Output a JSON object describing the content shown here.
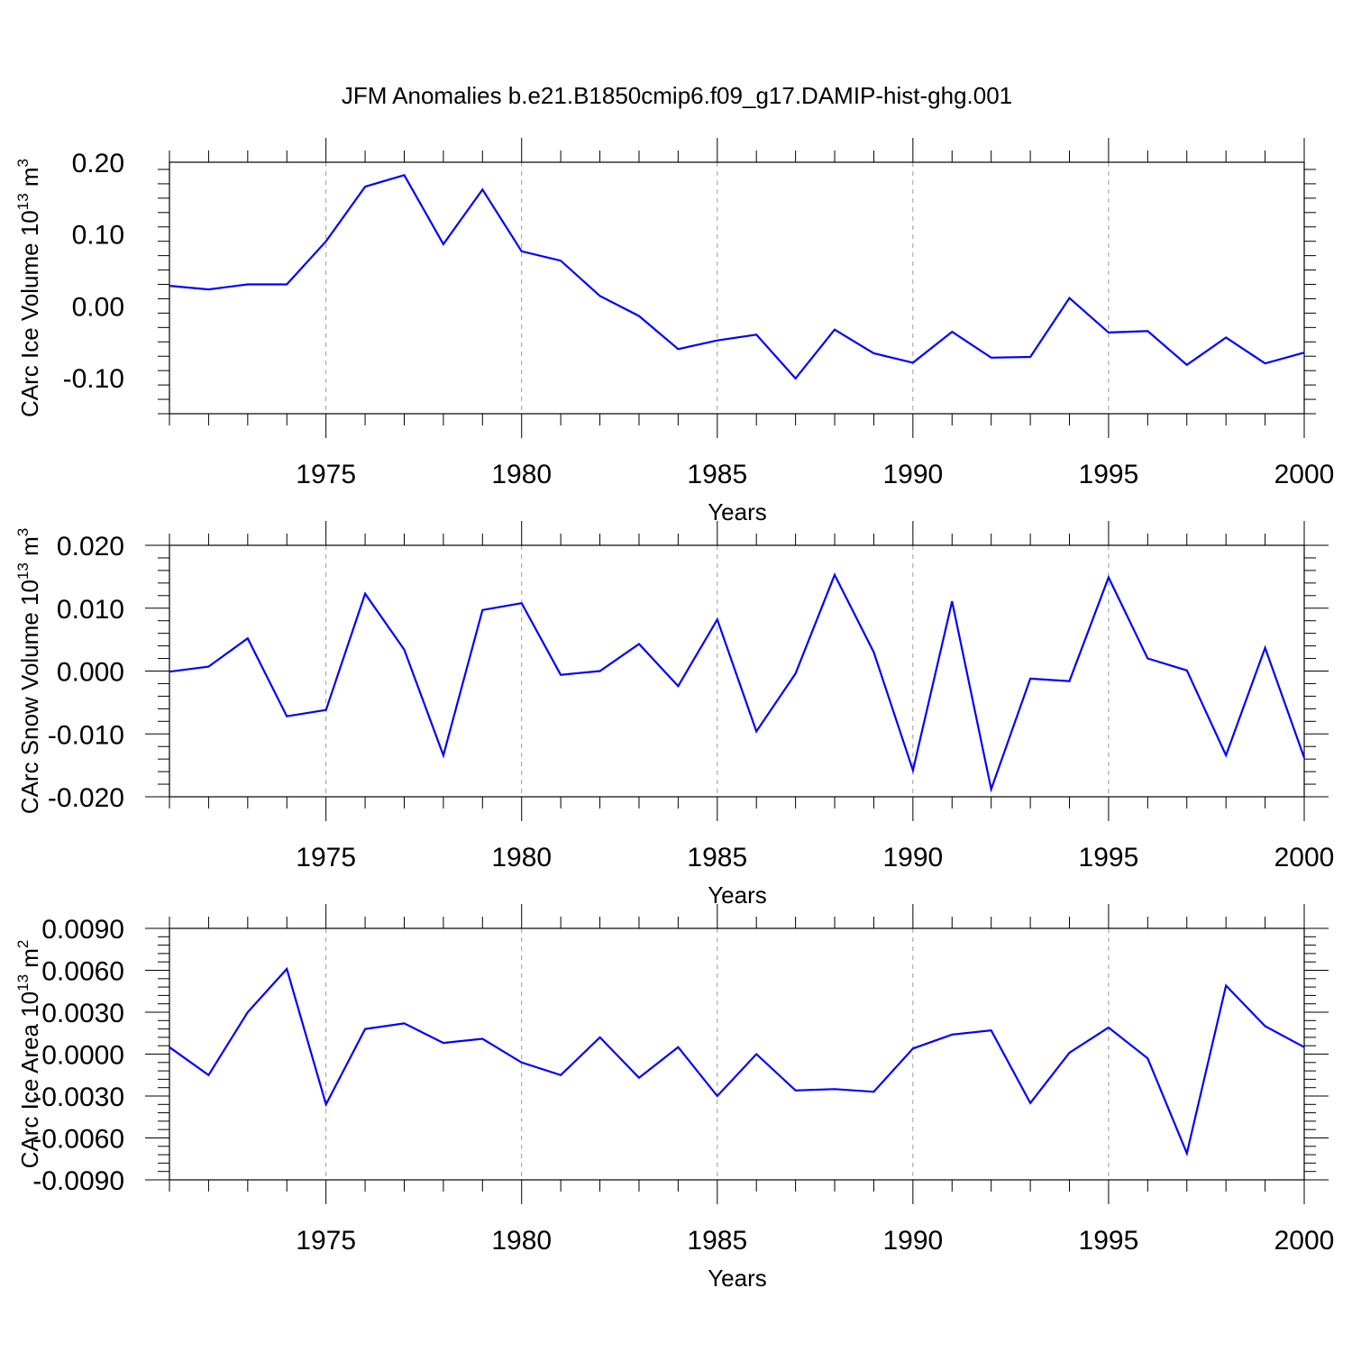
{
  "chart_data": [
    {
      "type": "line",
      "title": "JFM Anomalies b.e21.B1850cmip6.f09_g17.DAMIP-hist-ghg.001",
      "xlabel": "Years",
      "ylabel": "CArc Ice Volume 10",
      "ylabel_exp": "13",
      "ylabel_unit": "m",
      "ylabel_unit_exp": "3",
      "xlim": [
        1971,
        2000
      ],
      "ylim": [
        -0.15,
        0.2
      ],
      "yticks": [
        -0.1,
        0.0,
        0.1,
        0.2
      ],
      "yticklabels": [
        "-0.10",
        "0.00",
        "0.10",
        "0.20"
      ],
      "xticks": [
        1975,
        1980,
        1985,
        1990,
        1995,
        2000
      ],
      "xticklabels": [
        "1975",
        "1980",
        "1985",
        "1990",
        "1995",
        "2000"
      ],
      "grid": "vertical-dashed",
      "color": "#0000ff",
      "x": [
        1971,
        1972,
        1973,
        1974,
        1975,
        1976,
        1977,
        1978,
        1979,
        1980,
        1981,
        1982,
        1983,
        1984,
        1985,
        1986,
        1987,
        1988,
        1989,
        1990,
        1991,
        1992,
        1993,
        1994,
        1995,
        1996,
        1997,
        1998,
        1999,
        2000
      ],
      "values": [
        0.028,
        0.023,
        0.03,
        0.03,
        0.09,
        0.166,
        0.182,
        0.086,
        0.162,
        0.076,
        0.063,
        0.014,
        -0.014,
        -0.06,
        -0.048,
        -0.04,
        -0.101,
        -0.033,
        -0.066,
        -0.079,
        -0.036,
        -0.072,
        -0.071,
        0.011,
        -0.037,
        -0.035,
        -0.082,
        -0.044,
        -0.08,
        -0.065
      ]
    },
    {
      "type": "line",
      "title": "",
      "xlabel": "Years",
      "ylabel": "CArc Snow Volume 10",
      "ylabel_exp": "13",
      "ylabel_unit": "m",
      "ylabel_unit_exp": "3",
      "xlim": [
        1971,
        2000
      ],
      "ylim": [
        -0.02,
        0.02
      ],
      "yticks": [
        -0.02,
        -0.01,
        0.0,
        0.01,
        0.02
      ],
      "yticklabels": [
        "-0.020",
        "-0.010",
        "0.000",
        "0.010",
        "0.020"
      ],
      "xticks": [
        1975,
        1980,
        1985,
        1990,
        1995,
        2000
      ],
      "xticklabels": [
        "1975",
        "1980",
        "1985",
        "1990",
        "1995",
        "2000"
      ],
      "grid": "vertical-dashed",
      "color": "#0000ff",
      "x": [
        1971,
        1972,
        1973,
        1974,
        1975,
        1976,
        1977,
        1978,
        1979,
        1980,
        1981,
        1982,
        1983,
        1984,
        1985,
        1986,
        1987,
        1988,
        1989,
        1990,
        1991,
        1992,
        1993,
        1994,
        1995,
        1996,
        1997,
        1998,
        1999,
        2000
      ],
      "values": [
        -0.0001,
        0.0007,
        0.0052,
        -0.0072,
        -0.0062,
        0.0123,
        0.0034,
        -0.0134,
        0.0097,
        0.0108,
        -0.0006,
        0.0,
        0.0043,
        -0.0024,
        0.0082,
        -0.0096,
        -0.0004,
        0.0153,
        0.003,
        -0.0158,
        0.0111,
        -0.0188,
        -0.0012,
        -0.0016,
        0.0149,
        0.002,
        0.0001,
        -0.0134,
        0.0037,
        -0.0138
      ]
    },
    {
      "type": "line",
      "title": "",
      "xlabel": "Years",
      "ylabel": "CArc Ice Area 10",
      "ylabel_exp": "13",
      "ylabel_unit": "m",
      "ylabel_unit_exp": "2",
      "xlim": [
        1971,
        2000
      ],
      "ylim": [
        -0.009,
        0.009
      ],
      "yticks": [
        -0.009,
        -0.006,
        -0.003,
        0.0,
        0.003,
        0.006,
        0.009
      ],
      "yticklabels": [
        "-0.0090",
        "-0.0060",
        "-0.0030",
        "0.0000",
        "0.0030",
        "0.0060",
        "0.0090"
      ],
      "xticks": [
        1975,
        1980,
        1985,
        1990,
        1995,
        2000
      ],
      "xticklabels": [
        "1975",
        "1980",
        "1985",
        "1990",
        "1995",
        "2000"
      ],
      "grid": "vertical-dashed",
      "color": "#0000ff",
      "x": [
        1971,
        1972,
        1973,
        1974,
        1975,
        1976,
        1977,
        1978,
        1979,
        1980,
        1981,
        1982,
        1983,
        1984,
        1985,
        1986,
        1987,
        1988,
        1989,
        1990,
        1991,
        1992,
        1993,
        1994,
        1995,
        1996,
        1997,
        1998,
        1999,
        2000
      ],
      "values": [
        0.0005,
        -0.0015,
        0.003,
        0.0061,
        -0.0036,
        0.0018,
        0.0022,
        0.0008,
        0.0011,
        -0.0006,
        -0.0015,
        0.0012,
        -0.0017,
        0.0005,
        -0.003,
        0.0,
        -0.0026,
        -0.0025,
        -0.0027,
        0.0004,
        0.0014,
        0.0017,
        -0.0035,
        0.0001,
        0.0019,
        -0.0003,
        -0.0071,
        0.0049,
        0.002,
        0.0005
      ]
    }
  ]
}
